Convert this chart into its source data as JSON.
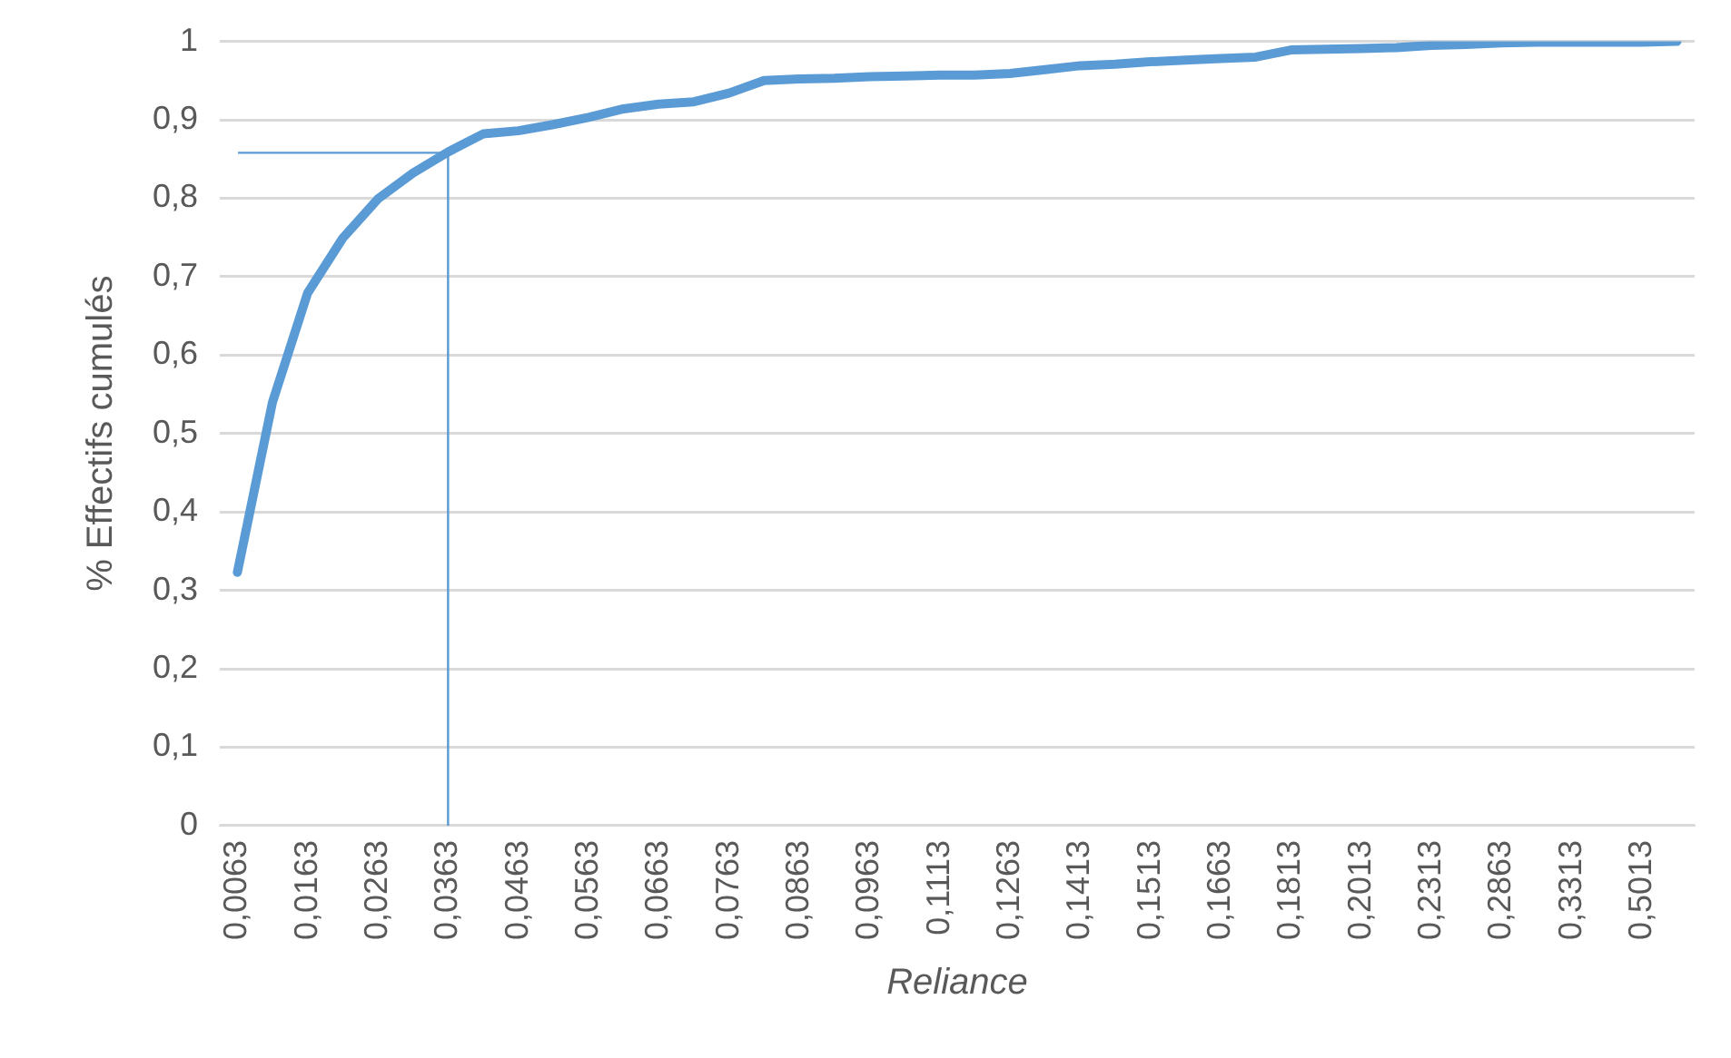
{
  "chart_data": {
    "type": "line",
    "xlabel": "Reliance",
    "ylabel": "% Effectifs cumulés",
    "categories": [
      "0,0063",
      null,
      "0,0163",
      null,
      "0,0263",
      null,
      "0,0363",
      null,
      "0,0463",
      null,
      "0,0563",
      null,
      "0,0663",
      null,
      "0,0763",
      null,
      "0,0863",
      null,
      "0,0963",
      null,
      "0,1113",
      null,
      "0,1263",
      null,
      "0,1413",
      null,
      "0,1513",
      null,
      "0,1663",
      null,
      "0,1813",
      null,
      "0,2013",
      null,
      "0,2313",
      null,
      "0,2863",
      null,
      "0,3313",
      null,
      "0,5013",
      null
    ],
    "series": [
      {
        "color": "#5b9bd5",
        "values": [
          0.323,
          0.54,
          0.679,
          0.749,
          0.799,
          0.832,
          0.859,
          0.882,
          0.886,
          0.894,
          0.903,
          0.914,
          0.92,
          0.923,
          0.934,
          0.95,
          0.952,
          0.953,
          0.955,
          0.956,
          0.957,
          0.957,
          0.959,
          0.964,
          0.969,
          0.971,
          0.974,
          0.976,
          0.978,
          0.98,
          0.989,
          0.99,
          0.991,
          0.992,
          0.995,
          0.996,
          0.998,
          0.999,
          0.999,
          0.999,
          0.999,
          1.0
        ]
      }
    ],
    "ylim": [
      0,
      1
    ],
    "yticks": [
      0,
      {
        "value": 0.1,
        "label": "0,1"
      },
      {
        "value": 0.2,
        "label": "0,2"
      },
      {
        "value": 0.3,
        "label": "0,3"
      },
      {
        "value": 0.4,
        "label": "0,4"
      },
      {
        "value": 0.5,
        "label": "0,5"
      },
      {
        "value": 0.6,
        "label": "0,6"
      },
      {
        "value": 0.7,
        "label": "0,7"
      },
      {
        "value": 0.8,
        "label": "0,8"
      },
      {
        "value": 0.9,
        "label": "0,9"
      },
      1
    ],
    "ref_lines": [
      {
        "axis": "y",
        "value": 0.858,
        "color": "#5b9bd5"
      },
      {
        "axis": "x",
        "value": "0,0363",
        "color": "#5b9bd5"
      }
    ],
    "grid": "y",
    "legend": false,
    "marker": "none",
    "line_style": "solid"
  }
}
